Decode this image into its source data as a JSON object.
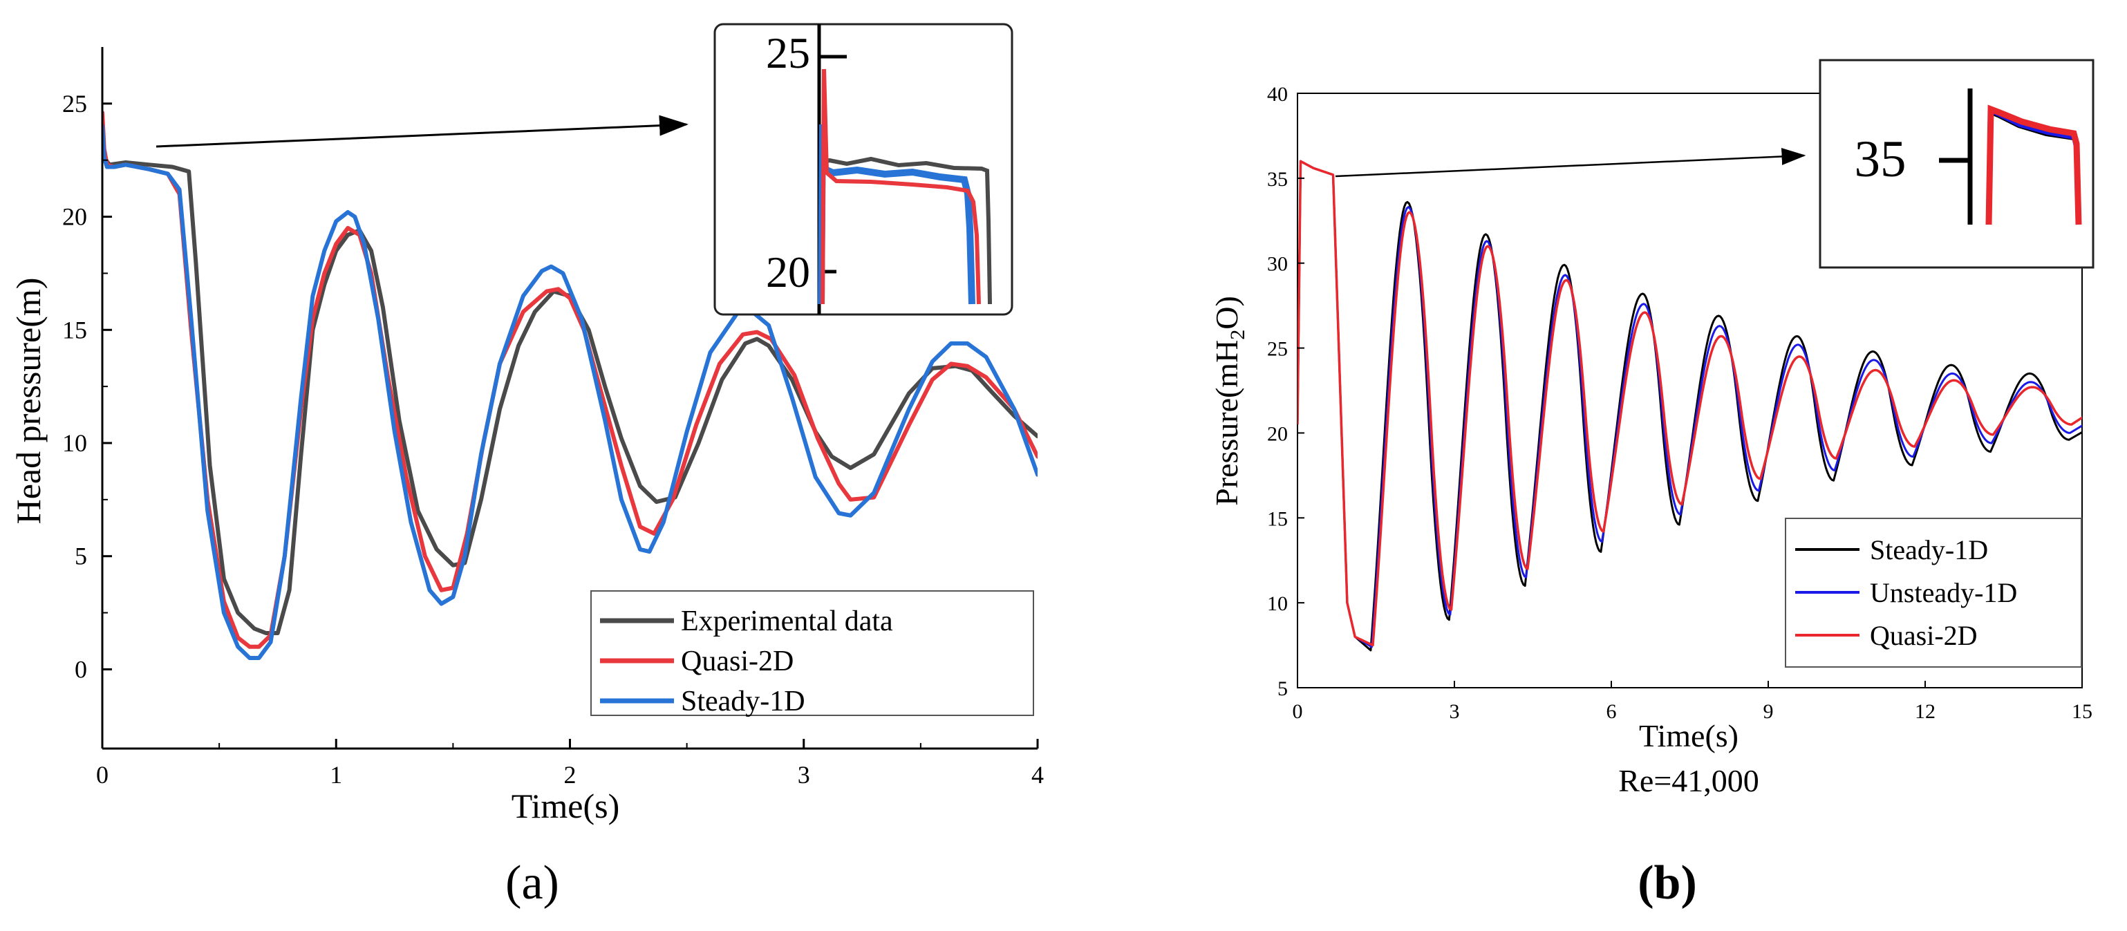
{
  "chart_data": [
    {
      "id": "a",
      "panel_label": "(a)",
      "type": "line",
      "title": "",
      "xlabel": "Time(s)",
      "ylabel": "Head pressure(m)",
      "xlim": [
        0,
        4
      ],
      "ylim": [
        -3.5,
        27.5
      ],
      "xticks": [
        0,
        1,
        2,
        3,
        4
      ],
      "yticks": [
        0,
        5,
        10,
        15,
        20,
        25
      ],
      "grid": false,
      "legend_position": "bottom-right",
      "series": [
        {
          "name": "Experimental data",
          "color": "#4a4a4a",
          "x": [
            0,
            0.01,
            0.03,
            0.1,
            0.2,
            0.3,
            0.37,
            0.4,
            0.46,
            0.52,
            0.58,
            0.65,
            0.7,
            0.75,
            0.8,
            0.85,
            0.9,
            0.95,
            1.0,
            1.05,
            1.1,
            1.15,
            1.2,
            1.27,
            1.35,
            1.43,
            1.5,
            1.55,
            1.62,
            1.7,
            1.78,
            1.85,
            1.93,
            2.0,
            2.08,
            2.15,
            2.22,
            2.3,
            2.37,
            2.45,
            2.55,
            2.65,
            2.75,
            2.8,
            2.85,
            2.95,
            3.05,
            3.12,
            3.2,
            3.3,
            3.45,
            3.55,
            3.65,
            3.72,
            3.8,
            3.9,
            4.0
          ],
          "y": [
            23.5,
            22.6,
            22.3,
            22.4,
            22.3,
            22.2,
            22.0,
            18.0,
            9.0,
            4.0,
            2.5,
            1.8,
            1.6,
            1.6,
            3.5,
            9.5,
            15.0,
            17.0,
            18.5,
            19.2,
            19.4,
            18.5,
            16.0,
            11.0,
            7.0,
            5.3,
            4.6,
            4.7,
            7.5,
            11.5,
            14.3,
            15.8,
            16.7,
            16.5,
            15.0,
            12.5,
            10.2,
            8.1,
            7.4,
            7.6,
            10.0,
            12.8,
            14.4,
            14.6,
            14.3,
            12.8,
            10.5,
            9.4,
            8.9,
            9.5,
            12.2,
            13.3,
            13.4,
            13.2,
            12.3,
            11.2,
            10.3
          ]
        },
        {
          "name": "Quasi-2D",
          "color": "#e8383d",
          "x": [
            0,
            0.008,
            0.02,
            0.05,
            0.1,
            0.2,
            0.28,
            0.33,
            0.38,
            0.45,
            0.52,
            0.58,
            0.63,
            0.67,
            0.72,
            0.78,
            0.85,
            0.9,
            0.95,
            1.0,
            1.05,
            1.1,
            1.15,
            1.22,
            1.3,
            1.38,
            1.45,
            1.5,
            1.56,
            1.63,
            1.7,
            1.8,
            1.9,
            1.95,
            2.0,
            2.06,
            2.14,
            2.22,
            2.3,
            2.36,
            2.44,
            2.54,
            2.64,
            2.74,
            2.8,
            2.86,
            2.96,
            3.06,
            3.15,
            3.2,
            3.3,
            3.45,
            3.55,
            3.63,
            3.7,
            3.78,
            3.9,
            4.0
          ],
          "y": [
            24.6,
            23.0,
            22.3,
            22.2,
            22.3,
            22.1,
            21.9,
            21.0,
            15.0,
            7.5,
            3.0,
            1.4,
            1.0,
            1.0,
            1.5,
            5.0,
            11.5,
            15.5,
            17.5,
            18.8,
            19.5,
            19.2,
            17.5,
            13.0,
            8.5,
            5.0,
            3.5,
            3.6,
            6.0,
            10.0,
            13.5,
            15.8,
            16.7,
            16.8,
            16.4,
            15.0,
            12.0,
            9.0,
            6.3,
            6.0,
            7.5,
            10.8,
            13.5,
            14.8,
            14.9,
            14.6,
            13.0,
            10.2,
            8.2,
            7.5,
            7.6,
            10.8,
            12.8,
            13.5,
            13.4,
            12.9,
            11.5,
            9.4
          ]
        },
        {
          "name": "Steady-1D",
          "color": "#2774d6",
          "x": [
            0,
            0.008,
            0.02,
            0.05,
            0.1,
            0.2,
            0.28,
            0.33,
            0.38,
            0.45,
            0.52,
            0.58,
            0.63,
            0.67,
            0.72,
            0.78,
            0.85,
            0.9,
            0.95,
            1.0,
            1.05,
            1.08,
            1.12,
            1.18,
            1.25,
            1.32,
            1.4,
            1.45,
            1.5,
            1.55,
            1.62,
            1.7,
            1.8,
            1.88,
            1.92,
            1.97,
            2.05,
            2.15,
            2.22,
            2.3,
            2.34,
            2.4,
            2.5,
            2.6,
            2.72,
            2.78,
            2.85,
            2.95,
            3.05,
            3.15,
            3.2,
            3.3,
            3.45,
            3.55,
            3.63,
            3.7,
            3.78,
            3.9,
            4.0
          ],
          "y": [
            24.0,
            22.6,
            22.2,
            22.2,
            22.3,
            22.1,
            21.9,
            21.2,
            15.5,
            7.0,
            2.5,
            1.0,
            0.5,
            0.5,
            1.2,
            5.0,
            12.0,
            16.5,
            18.5,
            19.8,
            20.2,
            20.0,
            18.8,
            15.5,
            10.5,
            6.5,
            3.5,
            2.9,
            3.2,
            5.0,
            9.5,
            13.5,
            16.5,
            17.6,
            17.8,
            17.5,
            15.5,
            11.0,
            7.5,
            5.3,
            5.2,
            6.5,
            10.5,
            14.0,
            15.8,
            15.8,
            15.2,
            12.0,
            8.5,
            6.9,
            6.8,
            7.8,
            11.5,
            13.6,
            14.4,
            14.4,
            13.8,
            11.5,
            8.6
          ]
        }
      ],
      "inset": {
        "tick_labels": [
          "25",
          "20"
        ],
        "detail_y": [
          20,
          25
        ]
      }
    },
    {
      "id": "b",
      "panel_label": "(b)",
      "type": "line",
      "title": "",
      "subtitle": "Re=41,000",
      "xlabel": "Time(s)",
      "ylabel_parts": [
        "Pressure(mH",
        "2",
        "O)"
      ],
      "xlim": [
        0,
        15
      ],
      "ylim": [
        5,
        40
      ],
      "xticks": [
        0,
        3,
        6,
        9,
        12,
        15
      ],
      "yticks": [
        5,
        10,
        15,
        20,
        25,
        30,
        35,
        40
      ],
      "grid": false,
      "legend_position": "bottom-right",
      "mean_pressure": 20.5,
      "series": [
        {
          "name": "Steady-1D",
          "color": "#000000",
          "peak_times": [
            2.1,
            3.6,
            5.1,
            6.6,
            8.05,
            9.55,
            11.0,
            12.5,
            14.0
          ],
          "peaks": [
            33.6,
            31.7,
            29.9,
            28.2,
            26.9,
            25.7,
            24.8,
            24.0,
            23.5
          ],
          "trough_times": [
            1.4,
            2.9,
            4.35,
            5.8,
            7.3,
            8.8,
            10.25,
            11.75,
            13.25,
            14.75
          ],
          "troughs": [
            7.2,
            9.0,
            11.0,
            13.0,
            14.6,
            16.0,
            17.2,
            18.1,
            18.9,
            19.6
          ]
        },
        {
          "name": "Unsteady-1D",
          "color": "#1a1ae6",
          "peak_times": [
            2.12,
            3.62,
            5.12,
            6.62,
            8.07,
            9.57,
            11.02,
            12.52,
            14.02
          ],
          "peaks": [
            33.3,
            31.3,
            29.3,
            27.6,
            26.3,
            25.2,
            24.3,
            23.5,
            23.0
          ],
          "trough_times": [
            1.42,
            2.92,
            4.37,
            5.82,
            7.32,
            8.82,
            10.27,
            11.77,
            13.27,
            14.77
          ],
          "troughs": [
            7.4,
            9.3,
            11.5,
            13.6,
            15.2,
            16.6,
            17.8,
            18.6,
            19.4,
            20.0
          ]
        },
        {
          "name": "Quasi-2D",
          "color": "#e8282d",
          "peak_times": [
            2.14,
            3.64,
            5.14,
            6.64,
            8.1,
            9.6,
            11.05,
            12.55,
            14.05
          ],
          "peaks": [
            33.0,
            31.0,
            29.0,
            27.1,
            25.7,
            24.5,
            23.7,
            23.1,
            22.7
          ],
          "trough_times": [
            1.44,
            2.94,
            4.4,
            5.85,
            7.35,
            8.85,
            10.3,
            11.8,
            13.3,
            14.8
          ],
          "troughs": [
            7.5,
            9.6,
            12.0,
            14.2,
            15.8,
            17.3,
            18.5,
            19.2,
            19.9,
            20.5
          ]
        }
      ],
      "inset": {
        "tick_labels": [
          "35"
        ],
        "detail_y": [
          35
        ]
      }
    }
  ]
}
